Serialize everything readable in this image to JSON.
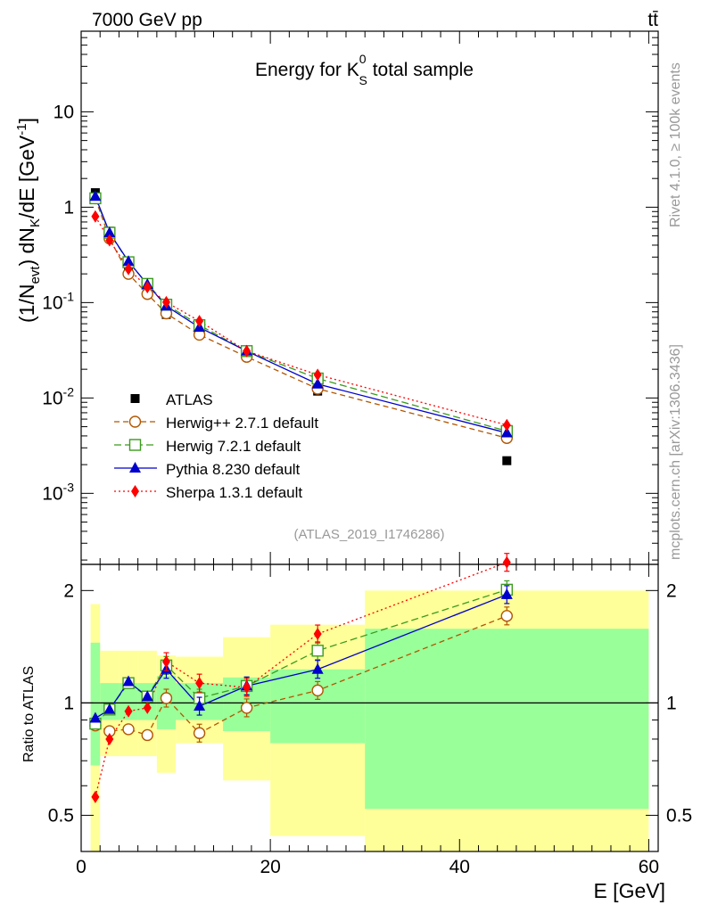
{
  "header": {
    "left": "7000 GeV pp",
    "right": "tt̄"
  },
  "side": {
    "rivet": "Rivet 4.1.0, ≥ 100k events",
    "mcplots": "mcplots.cern.ch [arXiv:1306.3436]"
  },
  "chart_data": {
    "type": "scatter",
    "title": {
      "pre": "Energy for K",
      "sup": "0",
      "sub": "S",
      "post": " total sample"
    },
    "analysis": "(ATLAS_2019_I1746286)",
    "xlabel": "E [GeV]",
    "ylabel": {
      "a": "(1/N",
      "a_sub": "evt",
      "b": ") dN",
      "b_sub": "K",
      "c": "/dE [GeV",
      "c_sup": "-1",
      "d": "]"
    },
    "ratio_ylabel": "Ratio to ATLAS",
    "xlim": [
      0,
      61
    ],
    "ylim": [
      0.00018,
      70
    ],
    "ratio_ylim": [
      0.4,
      2.35
    ],
    "x_ticks": [
      {
        "v": 0,
        "label": "0"
      },
      {
        "v": 20,
        "label": "20"
      },
      {
        "v": 40,
        "label": "40"
      },
      {
        "v": 60,
        "label": "60"
      }
    ],
    "y_ticks": [
      {
        "v": 0.001,
        "base": "10",
        "exp": "-3"
      },
      {
        "v": 0.01,
        "base": "10",
        "exp": "-2"
      },
      {
        "v": 0.1,
        "base": "10",
        "exp": "-1"
      },
      {
        "v": 1,
        "base": "1",
        "exp": ""
      },
      {
        "v": 10,
        "base": "10",
        "exp": ""
      }
    ],
    "ratio_ticks": [
      {
        "v": 0.5,
        "label": "0.5"
      },
      {
        "v": 1,
        "label": "1"
      },
      {
        "v": 2,
        "label": "2"
      }
    ],
    "bins": [
      {
        "lo": 1,
        "hi": 2,
        "x": 1.5
      },
      {
        "lo": 2,
        "hi": 4,
        "x": 3
      },
      {
        "lo": 4,
        "hi": 6,
        "x": 5
      },
      {
        "lo": 6,
        "hi": 8,
        "x": 7
      },
      {
        "lo": 8,
        "hi": 10,
        "x": 9
      },
      {
        "lo": 10,
        "hi": 15,
        "x": 12.5
      },
      {
        "lo": 15,
        "hi": 20,
        "x": 17.5
      },
      {
        "lo": 20,
        "hi": 30,
        "x": 25
      },
      {
        "lo": 30,
        "hi": 60,
        "x": 45
      }
    ],
    "data": {
      "name": "ATLAS",
      "color": "#000000",
      "values": [
        1.42,
        0.56,
        0.235,
        0.15,
        0.075,
        0.056,
        0.028,
        0.0118,
        0.0022
      ]
    },
    "bands": {
      "inner_color": "#99ff99",
      "outer_color": "#ffff99",
      "inner": [
        [
          0.68,
          1.45
        ],
        [
          0.9,
          1.13
        ],
        [
          0.9,
          1.13
        ],
        [
          0.9,
          1.13
        ],
        [
          0.85,
          1.18
        ],
        [
          0.9,
          1.13
        ],
        [
          0.84,
          1.17
        ],
        [
          0.78,
          1.23
        ],
        [
          0.52,
          1.58
        ]
      ],
      "outer": [
        [
          0.38,
          1.84
        ],
        [
          0.72,
          1.38
        ],
        [
          0.72,
          1.38
        ],
        [
          0.72,
          1.38
        ],
        [
          0.65,
          1.34
        ],
        [
          0.78,
          1.33
        ],
        [
          0.62,
          1.5
        ],
        [
          0.44,
          1.62
        ],
        [
          0.37,
          2.0
        ]
      ]
    },
    "series": [
      {
        "name": "Herwig++ 2.7.1 default",
        "color": "#b25600",
        "marker": "circle-open",
        "dash": "6,4",
        "values": [
          1.24,
          0.47,
          0.2,
          0.123,
          0.077,
          0.046,
          0.027,
          0.0125,
          0.0038
        ],
        "ratio": [
          0.87,
          0.84,
          0.85,
          0.82,
          1.03,
          0.83,
          0.97,
          1.08,
          1.71
        ]
      },
      {
        "name": "Herwig 7.2.1 default",
        "color": "#3c9b1e",
        "marker": "square-open",
        "dash": "8,4",
        "values": [
          1.24,
          0.54,
          0.265,
          0.157,
          0.095,
          0.058,
          0.031,
          0.016,
          0.0045
        ],
        "ratio": [
          0.88,
          0.96,
          1.13,
          1.04,
          1.26,
          1.03,
          1.11,
          1.38,
          2.01
        ]
      },
      {
        "name": "Pythia 8.230 default",
        "color": "#0000cc",
        "marker": "triangle",
        "dash": "",
        "values": [
          1.3,
          0.54,
          0.27,
          0.155,
          0.092,
          0.055,
          0.031,
          0.014,
          0.0043
        ],
        "ratio": [
          0.91,
          0.96,
          1.14,
          1.04,
          1.23,
          0.98,
          1.11,
          1.23,
          1.95
        ]
      },
      {
        "name": "Sherpa 1.3.1 default",
        "color": "#ff0000",
        "marker": "diamond",
        "dash": "2,3",
        "values": [
          0.8,
          0.45,
          0.225,
          0.145,
          0.101,
          0.064,
          0.031,
          0.0175,
          0.0052
        ],
        "ratio": [
          0.56,
          0.8,
          0.95,
          0.97,
          1.29,
          1.13,
          1.1,
          1.53,
          2.38
        ]
      }
    ]
  }
}
